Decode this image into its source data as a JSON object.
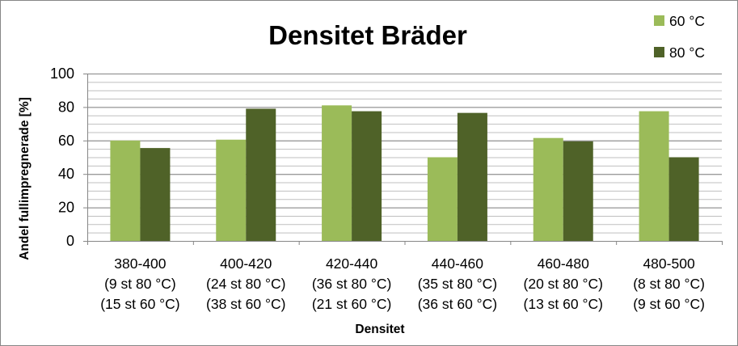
{
  "chart_data": {
    "type": "bar",
    "title": "Densitet Bräder",
    "xlabel": "Densitet",
    "ylabel": "Andel fullimpregnerade [%]",
    "ylim": [
      0,
      100
    ],
    "yticks": [
      "0",
      "20",
      "40",
      "60",
      "80",
      "100"
    ],
    "grid": true,
    "legend_position": "top-right",
    "categories": [
      [
        "380-400",
        "(9 st 80 °C)",
        "(15 st 60 °C)"
      ],
      [
        "400-420",
        "(24 st 80 °C)",
        "(38 st 60 °C)"
      ],
      [
        "420-440",
        "(36 st 80 °C)",
        "(21 st 60 °C)"
      ],
      [
        "440-460",
        "(35 st 80 °C)",
        "(36 st 60 °C)"
      ],
      [
        "460-480",
        "(20 st 80 °C)",
        "(13 st 60 °C)"
      ],
      [
        "480-500",
        "(8 st 80 °C)",
        "(9 st 60 °C)"
      ]
    ],
    "series": [
      {
        "name": "60 °C",
        "color": "#9BBB59",
        "values": [
          60,
          60.5,
          81,
          50,
          61.5,
          77.5
        ]
      },
      {
        "name": "80 °C",
        "color": "#4F6228",
        "values": [
          55.5,
          79,
          77.5,
          76.5,
          59.5,
          50
        ]
      }
    ]
  }
}
